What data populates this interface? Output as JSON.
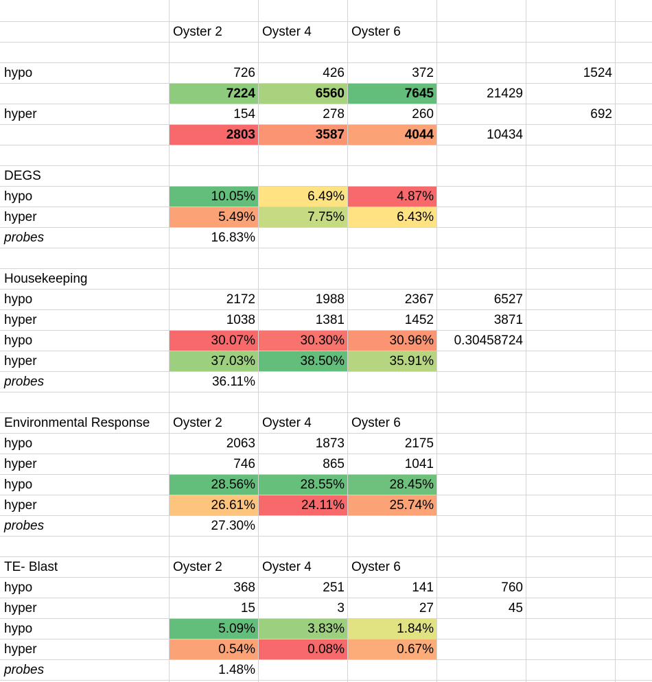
{
  "header": {
    "c1": "Oyster 2",
    "c2": "Oyster 4",
    "c3": "Oyster 6"
  },
  "counts": {
    "row_hypo": {
      "label": "hypo",
      "v1": "726",
      "v2": "426",
      "v3": "372",
      "extra": "1524"
    },
    "row_hypo_tot": {
      "v1": "7224",
      "v2": "6560",
      "v3": "7645",
      "sum": "21429"
    },
    "row_hyper": {
      "label": "hyper",
      "v1": "154",
      "v2": "278",
      "v3": "260",
      "extra": "692"
    },
    "row_hyper_tot": {
      "v1": "2803",
      "v2": "3587",
      "v3": "4044",
      "sum": "10434"
    }
  },
  "degs": {
    "title": "DEGS",
    "hypo": {
      "label": "hypo",
      "v1": "10.05%",
      "v2": "6.49%",
      "v3": "4.87%"
    },
    "hyper": {
      "label": "hyper",
      "v1": "5.49%",
      "v2": "7.75%",
      "v3": "6.43%"
    },
    "probes": {
      "label": "probes",
      "v1": "16.83%"
    }
  },
  "housekeeping": {
    "title": "Housekeeping",
    "hypo_count": {
      "label": "hypo",
      "v1": "2172",
      "v2": "1988",
      "v3": "2367",
      "sum": "6527"
    },
    "hyper_count": {
      "label": "hyper",
      "v1": "1038",
      "v2": "1381",
      "v3": "1452",
      "sum": "3871"
    },
    "hypo_pct": {
      "label": "hypo",
      "v1": "30.07%",
      "v2": "30.30%",
      "v3": "30.96%",
      "extra": "0.30458724"
    },
    "hyper_pct": {
      "label": "hyper",
      "v1": "37.03%",
      "v2": "38.50%",
      "v3": "35.91%"
    },
    "probes": {
      "label": "probes",
      "v1": "36.11%"
    }
  },
  "environmental": {
    "title": "Environmental Response",
    "c1": "Oyster 2",
    "c2": "Oyster 4",
    "c3": "Oyster 6",
    "hypo_count": {
      "label": "hypo",
      "v1": "2063",
      "v2": "1873",
      "v3": "2175"
    },
    "hyper_count": {
      "label": "hyper",
      "v1": "746",
      "v2": "865",
      "v3": "1041"
    },
    "hypo_pct": {
      "label": "hypo",
      "v1": "28.56%",
      "v2": "28.55%",
      "v3": "28.45%"
    },
    "hyper_pct": {
      "label": "hyper",
      "v1": "26.61%",
      "v2": "24.11%",
      "v3": "25.74%"
    },
    "probes": {
      "label": "probes",
      "v1": "27.30%"
    }
  },
  "te_blast": {
    "title": "TE- Blast",
    "c1": "Oyster 2",
    "c2": "Oyster 4",
    "c3": "Oyster 6",
    "hypo_count": {
      "label": "hypo",
      "v1": "368",
      "v2": "251",
      "v3": "141",
      "sum": "760"
    },
    "hyper_count": {
      "label": "hyper",
      "v1": "15",
      "v2": "3",
      "v3": "27",
      "sum": "45"
    },
    "hypo_pct": {
      "label": "hypo",
      "v1": "5.09%",
      "v2": "3.83%",
      "v3": "1.84%"
    },
    "hyper_pct": {
      "label": "hyper",
      "v1": "0.54%",
      "v2": "0.08%",
      "v3": "0.67%"
    },
    "probes": {
      "label": "probes",
      "v1": "1.48%"
    }
  },
  "colors": {
    "green_dark": "#63be7b",
    "green_mid": "#8fcb7c",
    "green_light": "#a9d27f",
    "green_pale": "#c6db81",
    "yellow": "#ffe383",
    "yellow_green": "#e1e383",
    "orange_light": "#fdc47d",
    "orange": "#fba276",
    "orange_dark": "#fa9473",
    "red_orange": "#f8836f",
    "red": "#f8696b"
  }
}
